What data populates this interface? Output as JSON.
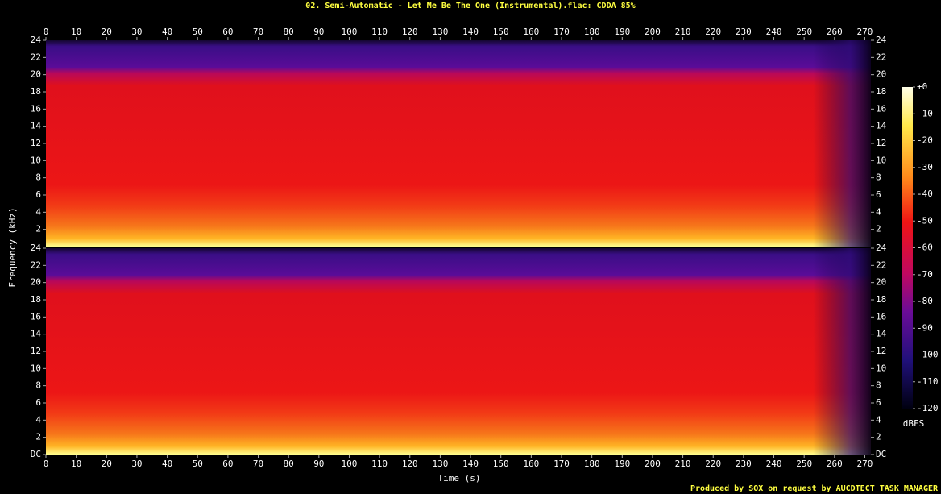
{
  "title": "02. Semi-Automatic - Let Me Be The One (Instrumental).flac: CDDA 85%",
  "xlabel": "Time (s)",
  "ylabel": "Frequency (kHz)",
  "footer": "Produced by SOX on request by AUCDTECT TASK MANAGER",
  "colorbar": {
    "label": "dBFS",
    "lim": [
      -120,
      0
    ],
    "ticks": [
      {
        "value": 0,
        "label": "+0"
      },
      -10,
      -20,
      -30,
      -40,
      -50,
      -60,
      -70,
      -80,
      -90,
      -100,
      -110,
      -120
    ]
  },
  "chart_data": [
    {
      "type": "spectrogram",
      "xlim": [
        0,
        272
      ],
      "xticks": [
        0,
        10,
        20,
        30,
        40,
        50,
        60,
        70,
        80,
        90,
        100,
        110,
        120,
        130,
        140,
        150,
        160,
        170,
        180,
        190,
        200,
        210,
        220,
        230,
        240,
        250,
        260,
        270
      ],
      "ylim": [
        0,
        24
      ],
      "yticks": [
        2,
        4,
        6,
        8,
        10,
        12,
        14,
        16,
        18,
        20,
        22,
        24
      ]
    },
    {
      "type": "spectrogram",
      "xlim": [
        0,
        272
      ],
      "xticks": [
        0,
        10,
        20,
        30,
        40,
        50,
        60,
        70,
        80,
        90,
        100,
        110,
        120,
        130,
        140,
        150,
        160,
        170,
        180,
        190,
        200,
        210,
        220,
        230,
        240,
        250,
        260,
        270
      ],
      "ylim": [
        0,
        24
      ],
      "yticks": [
        {
          "value": 0,
          "label": "DC"
        },
        2,
        4,
        6,
        8,
        10,
        12,
        14,
        16,
        18,
        20,
        22,
        24
      ]
    }
  ]
}
